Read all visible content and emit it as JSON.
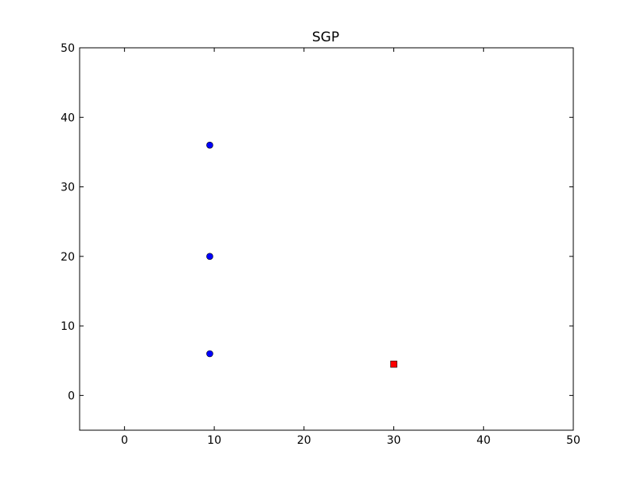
{
  "chart_data": {
    "type": "scatter",
    "title": "SGP",
    "xlabel": "",
    "ylabel": "",
    "xlim": [
      -5,
      50
    ],
    "ylim": [
      -5,
      50
    ],
    "xticks": [
      0,
      10,
      20,
      30,
      40,
      50
    ],
    "yticks": [
      0,
      10,
      20,
      30,
      40,
      50
    ],
    "grid": false,
    "series": [
      {
        "marker": "circle",
        "color": "#0000ff",
        "points": [
          {
            "x": 9.5,
            "y": 36
          },
          {
            "x": 9.5,
            "y": 20
          },
          {
            "x": 9.5,
            "y": 6
          }
        ]
      },
      {
        "marker": "square",
        "color": "#ff0000",
        "points": [
          {
            "x": 30,
            "y": 4.5
          }
        ]
      }
    ]
  }
}
